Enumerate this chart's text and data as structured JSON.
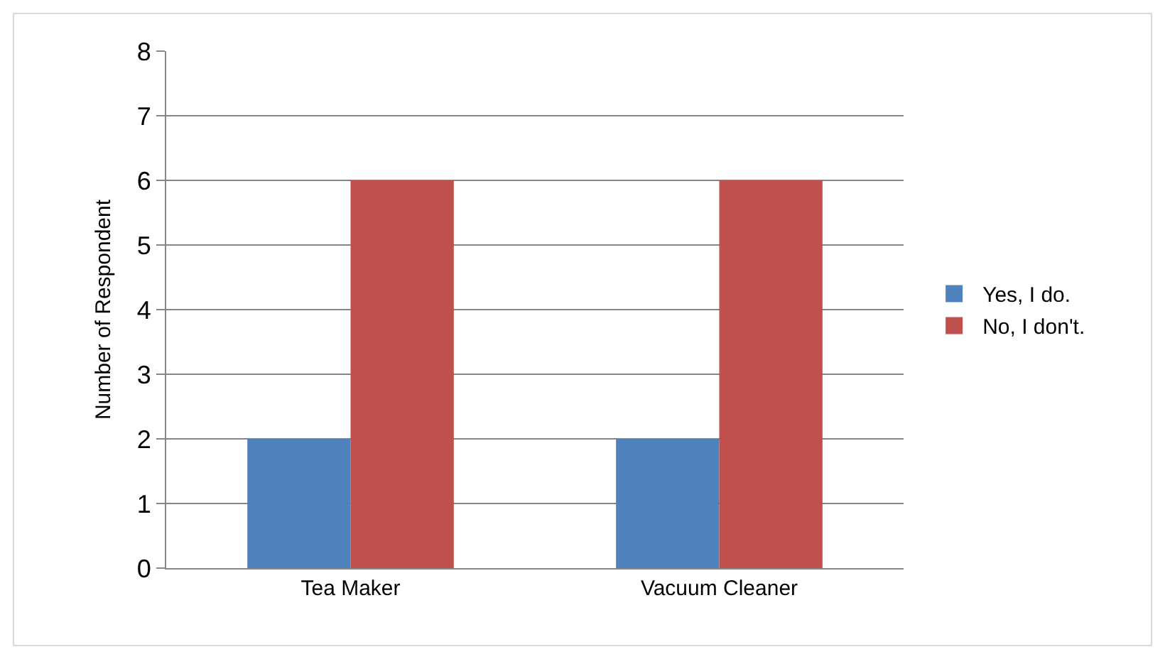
{
  "chart_data": {
    "type": "bar",
    "ylabel": "Number of Respondent",
    "categories": [
      "Tea Maker",
      "Vacuum Cleaner"
    ],
    "series": [
      {
        "name": "Yes, I do.",
        "color": "#4f81bd",
        "values": [
          2,
          2
        ]
      },
      {
        "name": "No, I don't.",
        "color": "#c0504d",
        "values": [
          6,
          6
        ]
      }
    ],
    "ylim": [
      0,
      8
    ],
    "yticks": [
      0,
      1,
      2,
      3,
      4,
      5,
      6,
      7,
      8
    ],
    "grid": "y",
    "legend": "right"
  }
}
